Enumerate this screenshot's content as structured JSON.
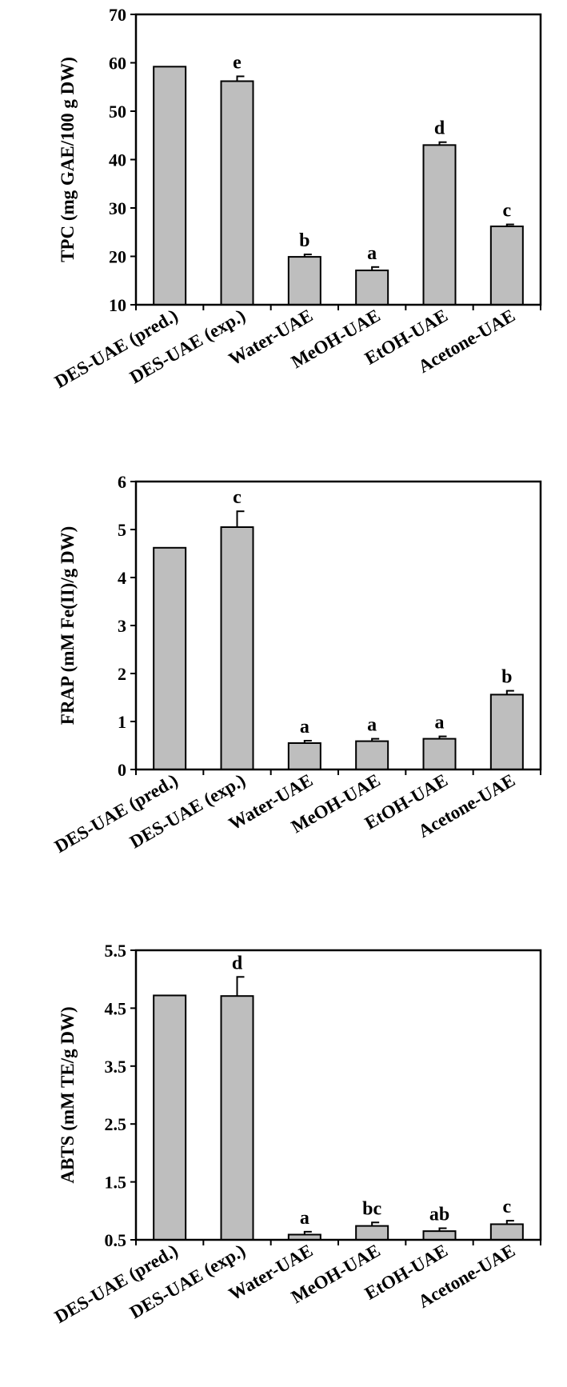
{
  "chart_data": [
    {
      "type": "bar",
      "ylabel": "TPC (mg GAE/100 g DW)",
      "ylim": [
        10,
        70
      ],
      "yticks": [
        10,
        20,
        30,
        40,
        50,
        60,
        70
      ],
      "categories": [
        "DES-UAE (pred.)",
        "DES-UAE (exp.)",
        "Water-UAE",
        "MeOH-UAE",
        "EtOH-UAE",
        "Acetone-UAE"
      ],
      "values": [
        59.2,
        56.2,
        19.9,
        17.1,
        43.0,
        26.2
      ],
      "errors": [
        0,
        1.0,
        0.5,
        0.7,
        0.6,
        0.4
      ],
      "letters": [
        "",
        "e",
        "b",
        "a",
        "d",
        "c"
      ],
      "bar_color": "#bebebe",
      "grid": false
    },
    {
      "type": "bar",
      "ylabel": "FRAP (mM Fe(II)/g DW)",
      "ylim": [
        0,
        6
      ],
      "yticks": [
        0,
        1,
        2,
        3,
        4,
        5,
        6
      ],
      "categories": [
        "DES-UAE (pred.)",
        "DES-UAE (exp.)",
        "Water-UAE",
        "MeOH-UAE",
        "EtOH-UAE",
        "Acetone-UAE"
      ],
      "values": [
        4.62,
        5.05,
        0.55,
        0.59,
        0.64,
        1.56
      ],
      "errors": [
        0,
        0.33,
        0.05,
        0.05,
        0.05,
        0.08
      ],
      "letters": [
        "",
        "c",
        "a",
        "a",
        "a",
        "b"
      ],
      "bar_color": "#bebebe",
      "grid": false
    },
    {
      "type": "bar",
      "ylabel": "ABTS (mM TE/g DW)",
      "ylim": [
        0.5,
        5.5
      ],
      "yticks": [
        "0.5",
        "1.5",
        "2.5",
        "3.5",
        "4.5",
        "5.5"
      ],
      "categories": [
        "DES-UAE (pred.)",
        "DES-UAE (exp.)",
        "Water-UAE",
        "MeOH-UAE",
        "EtOH-UAE",
        "Acetone-UAE"
      ],
      "values": [
        4.72,
        4.71,
        0.59,
        0.74,
        0.65,
        0.77
      ],
      "errors": [
        0,
        0.33,
        0.05,
        0.06,
        0.05,
        0.06
      ],
      "letters": [
        "",
        "d",
        "a",
        "bc",
        "ab",
        "c"
      ],
      "bar_color": "#bebebe",
      "grid": false
    }
  ]
}
